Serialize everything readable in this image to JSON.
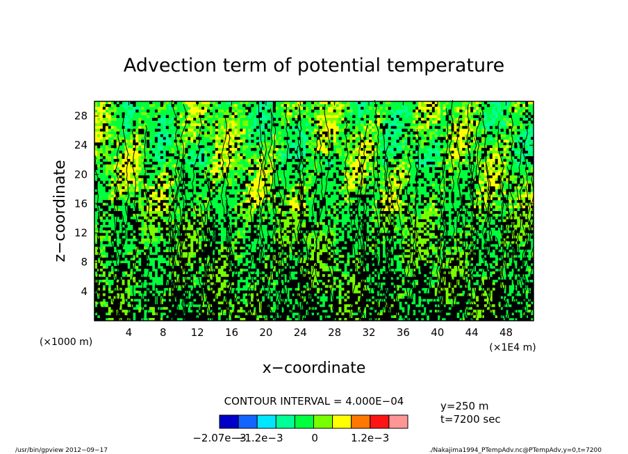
{
  "chart_data": {
    "type": "heatmap",
    "title": "Advection term of potential temperature",
    "xlabel": "x−coordinate",
    "ylabel": "z−coordinate",
    "x_unit_left": "(×1000 m)",
    "x_unit_right": "(×1E4 m)",
    "xlim": [
      0,
      51.2
    ],
    "ylim": [
      0,
      30
    ],
    "x_ticks": [
      4,
      8,
      12,
      16,
      20,
      24,
      28,
      32,
      36,
      40,
      44,
      48
    ],
    "y_ticks": [
      4,
      8,
      12,
      16,
      20,
      24,
      28
    ],
    "contour_interval_label": "CONTOUR INTERVAL = 4.000E−04",
    "info": [
      "y=250 m",
      "t=7200 sec"
    ],
    "colorbar": {
      "colors": [
        "#0000c8",
        "#1464ff",
        "#00e6ff",
        "#00ff96",
        "#00ff3c",
        "#78ff00",
        "#ffff00",
        "#ff7800",
        "#ff1414",
        "#ff9696"
      ],
      "labels": [
        "−2.07e−3",
        "−1.2e−3",
        "0",
        "1.2e−3"
      ],
      "label_values": [
        -0.00207,
        -0.0012,
        0,
        0.0012
      ],
      "range": [
        -0.00207,
        0.00202
      ]
    },
    "palette": {
      "dark": "#000000",
      "low": "#00ff3c",
      "mid": "#78ff00",
      "high": "#ffff00",
      "green2": "#00ff96"
    }
  },
  "footer": {
    "left": "/usr/bin/gpview   2012−09−17",
    "right": "./Nakajima1994_PTempAdv.nc@PTempAdv,y=0,t=7200"
  }
}
